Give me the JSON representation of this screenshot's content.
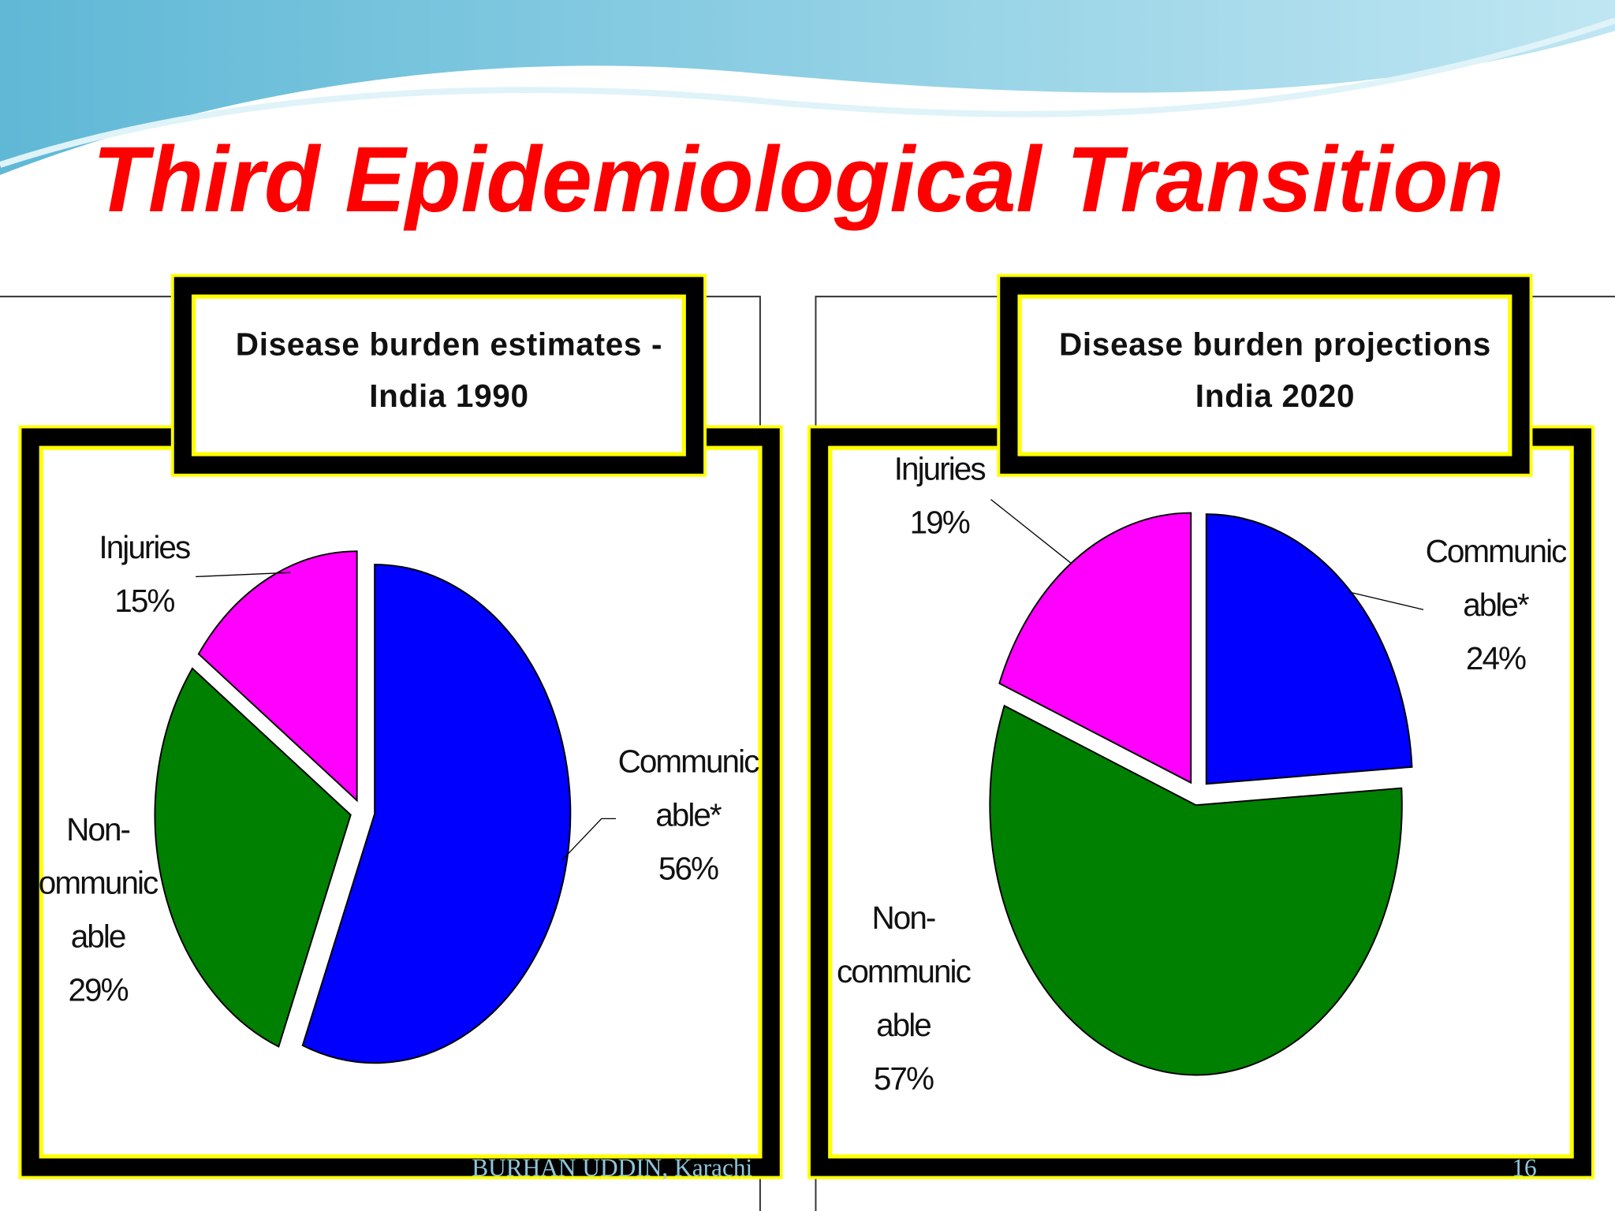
{
  "title": "Third Epidemiological Transition",
  "chart_data": [
    {
      "type": "pie",
      "title": "Disease burden estimates -\nIndia 1990",
      "categories": [
        "Communic\nable*",
        "Non-\nommunic\nable",
        "Injuries"
      ],
      "values": [
        56,
        29,
        15
      ],
      "value_labels": [
        "56%",
        "29%",
        "15%"
      ],
      "colors": [
        "#0000ff",
        "#008000",
        "#ff00ff"
      ]
    },
    {
      "type": "pie",
      "title": "Disease burden projections\nIndia 2020",
      "categories": [
        "Communic\nable*",
        "Non-\ncommunic\nable",
        "Injuries"
      ],
      "values": [
        24,
        57,
        19
      ],
      "value_labels": [
        "24%",
        "57%",
        "19%"
      ],
      "colors": [
        "#0000ff",
        "#008000",
        "#ff00ff"
      ]
    }
  ],
  "footer": {
    "author": "BURHAN UDDIN, Karachi",
    "page": "16"
  }
}
